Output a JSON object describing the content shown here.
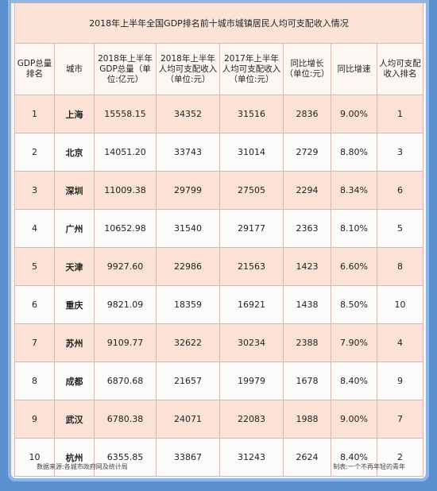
{
  "title": "2018年上半年全国GDP排名前十城市城镇居民人均可支配收入情况",
  "headers": [
    "GDP总量排名",
    "城市",
    "2018年上半年GDP总量（单位:亿元）",
    "2018年上半年人均可支配收入（单位:元）",
    "2017年上半年人均可支配收入（单位:元）",
    "同比增长（单位:元）",
    "同比增速",
    "人均可支配收入排名"
  ],
  "rows": [
    [
      "1",
      "上海",
      "15558.15",
      "34352",
      "31516",
      "2836",
      "9.00%",
      "1"
    ],
    [
      "2",
      "北京",
      "14051.20",
      "33743",
      "31014",
      "2729",
      "8.80%",
      "3"
    ],
    [
      "3",
      "深圳",
      "11009.38",
      "29799",
      "27505",
      "2294",
      "8.34%",
      "6"
    ],
    [
      "4",
      "广州",
      "10652.98",
      "31540",
      "29177",
      "2363",
      "8.10%",
      "5"
    ],
    [
      "5",
      "天津",
      "9927.60",
      "22986",
      "21563",
      "1423",
      "6.60%",
      "8"
    ],
    [
      "6",
      "重庆",
      "9821.09",
      "18359",
      "16921",
      "1438",
      "8.50%",
      "10"
    ],
    [
      "7",
      "苏州",
      "9109.77",
      "32622",
      "30234",
      "2388",
      "7.90%",
      "4"
    ],
    [
      "8",
      "成都",
      "6870.68",
      "21657",
      "19979",
      "1678",
      "8.40%",
      "9"
    ],
    [
      "9",
      "武汉",
      "6780.38",
      "24071",
      "22083",
      "1988",
      "9.00%",
      "7"
    ],
    [
      "10",
      "杭州",
      "6355.85",
      "33867",
      "31243",
      "2624",
      "8.40%",
      "2"
    ]
  ],
  "footer": {
    "source": "数据来源:各城市政府网及统计局",
    "maker": "制表:一个不再年轻的青年"
  }
}
